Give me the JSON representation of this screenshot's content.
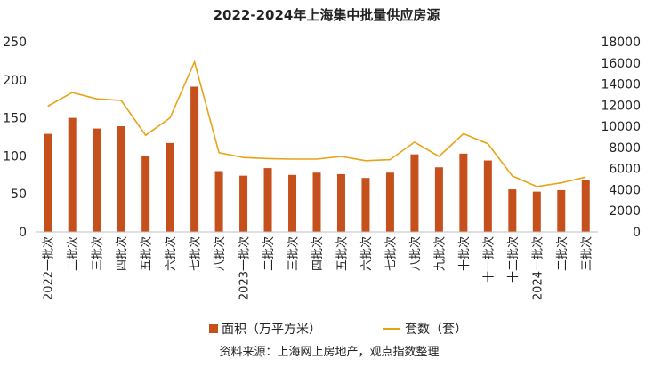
{
  "chart_data": {
    "type": "bar+line",
    "title": "2022-2024年上海集中批量供应房源",
    "categories": [
      "2022一批次",
      "二批次",
      "三批次",
      "四批次",
      "五批次",
      "六批次",
      "七批次",
      "八批次",
      "2023一批次",
      "二批次",
      "三批次",
      "四批次",
      "五批次",
      "六批次",
      "七批次",
      "八批次",
      "九批次",
      "十批次",
      "十一批次",
      "十二批次",
      "2024一批次",
      "二批次",
      "三批次"
    ],
    "series": [
      {
        "name": "面积（万平方米）",
        "type": "bar",
        "axis": "left",
        "color": "#C5501C",
        "values": [
          129,
          150,
          136,
          139,
          100,
          117,
          191,
          80,
          74,
          84,
          75,
          78,
          76,
          71,
          78,
          102,
          85,
          103,
          94,
          56,
          53,
          55,
          68
        ]
      },
      {
        "name": "套数（套）",
        "type": "line",
        "axis": "right",
        "color": "#E8A317",
        "values": [
          11900,
          13200,
          12600,
          12450,
          9150,
          10800,
          16100,
          7500,
          7050,
          6950,
          6900,
          6900,
          7150,
          6750,
          6850,
          8500,
          7150,
          9300,
          8350,
          5300,
          4300,
          4650,
          5200
        ]
      }
    ],
    "y_left": {
      "min": 0,
      "max": 250,
      "ticks": [
        0,
        50,
        100,
        150,
        200,
        250
      ]
    },
    "y_right": {
      "min": 0,
      "max": 18000,
      "ticks": [
        0,
        2000,
        4000,
        6000,
        8000,
        10000,
        12000,
        14000,
        16000,
        18000
      ]
    },
    "legend": [
      "面积（万平方米）",
      "套数（套）"
    ],
    "legend_position": "bottom",
    "source": "资料来源：上海网上房地产，观点指数整理"
  }
}
